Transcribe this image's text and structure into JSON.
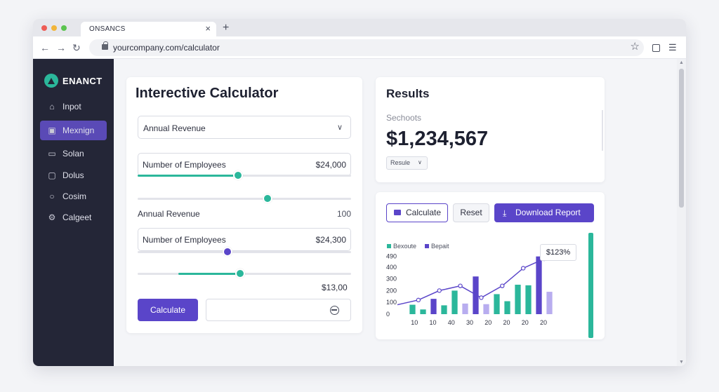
{
  "browser": {
    "tab_title": "ONSANCS",
    "url": "yourcompany.com/calculator",
    "icons": [
      "back-arrow-icon",
      "forward-arrow-icon",
      "reload-icon",
      "lock-icon",
      "star-icon",
      "extensions-icon",
      "menu-icon"
    ]
  },
  "sidebar": {
    "brand": "ENANCT",
    "items": [
      {
        "label": "Inpot",
        "icon": "home-icon",
        "active": false
      },
      {
        "label": "Mexnign",
        "icon": "image-icon",
        "active": true
      },
      {
        "label": "Solan",
        "icon": "window-icon",
        "active": false
      },
      {
        "label": "Dolus",
        "icon": "chat-icon",
        "active": false
      },
      {
        "label": "Cosim",
        "icon": "user-icon",
        "active": false
      },
      {
        "label": "Calgeet",
        "icon": "settings-icon",
        "active": false
      }
    ]
  },
  "calculator": {
    "title": "Interective Calculator",
    "select": {
      "value": "Annual Revenue"
    },
    "field1": {
      "label": "Number of Employees",
      "value": "$24,000"
    },
    "row": {
      "label": "Annual Revenue",
      "value": "100"
    },
    "field2": {
      "label": "Number of Employees",
      "value": "$24,300"
    },
    "amount": "$13,00",
    "calculate_label": "Calculate",
    "sliders": [
      {
        "name": "employees-slider",
        "level": 0.47,
        "color": "#2bb79b",
        "style": "fill"
      },
      {
        "name": "revenue-slider",
        "level": 0.61,
        "color": "#2bb79b",
        "style": "thumb"
      },
      {
        "name": "employees-slider-2",
        "level": 0.42,
        "color": "#5a45c9",
        "style": "thumb"
      },
      {
        "name": "amount-slider",
        "level": 0.48,
        "color": "#2bb79b",
        "style": "range",
        "start": 0.19
      }
    ]
  },
  "results": {
    "title": "Results",
    "subtitle": "Sechoots",
    "value": "$1,234,567",
    "badge": "Resule"
  },
  "chart_panel": {
    "calculate_label": "Calculate",
    "reset_label": "Reset",
    "download_label": "Download Report",
    "tooltip": "$123%"
  },
  "chart_data": {
    "type": "bar",
    "legend": [
      {
        "name": "Bexoute",
        "color": "#2bb79b"
      },
      {
        "name": "Bepait",
        "color": "#5a45c9"
      }
    ],
    "ylim": [
      0,
      500
    ],
    "yticks": [
      "490",
      "400",
      "300",
      "200",
      "100",
      "0"
    ],
    "ytick_values": [
      490,
      400,
      300,
      200,
      100,
      0
    ],
    "xticks": [
      "10",
      "10",
      "40",
      "30",
      "20",
      "20",
      "20",
      "20"
    ],
    "bars": [
      {
        "value": 80,
        "color": "#2bb79b"
      },
      {
        "value": 40,
        "color": "#2bb79b"
      },
      {
        "value": 130,
        "color": "#5a45c9"
      },
      {
        "value": 75,
        "color": "#2bb79b"
      },
      {
        "value": 200,
        "color": "#2bb79b"
      },
      {
        "value": 90,
        "color": "#b8adef"
      },
      {
        "value": 320,
        "color": "#5a45c9"
      },
      {
        "value": 85,
        "color": "#b8adef"
      },
      {
        "value": 170,
        "color": "#2bb79b"
      },
      {
        "value": 110,
        "color": "#2bb79b"
      },
      {
        "value": 250,
        "color": "#2bb79b"
      },
      {
        "value": 245,
        "color": "#2bb79b"
      },
      {
        "value": 490,
        "color": "#5a45c9"
      },
      {
        "value": 190,
        "color": "#b8adef"
      }
    ],
    "line": {
      "color": "#5a45c9",
      "values": [
        80,
        120,
        200,
        240,
        140,
        240,
        390,
        470
      ]
    }
  },
  "colors": {
    "accent": "#5a45c9",
    "teal": "#2bb79b",
    "sidebar_bg": "#242637"
  }
}
